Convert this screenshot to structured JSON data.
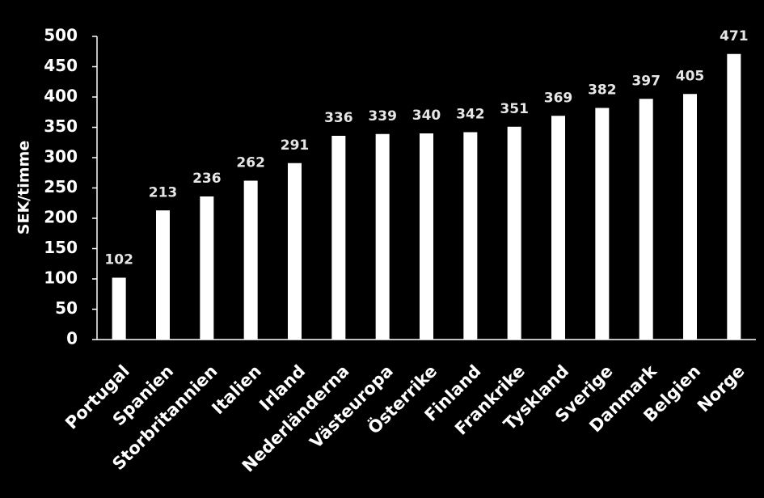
{
  "chart_data": {
    "type": "bar",
    "y_label": "SEK/timme",
    "categories": [
      "Portugal",
      "Spanien",
      "Storbritannien",
      "Italien",
      "Irland",
      "Nederländerna",
      "Västeuropa",
      "Österrike",
      "Finland",
      "Frankrike",
      "Tyskland",
      "Sverige",
      "Danmark",
      "Belgien",
      "Norge"
    ],
    "values": [
      102,
      213,
      236,
      262,
      291,
      336,
      339,
      340,
      342,
      351,
      369,
      382,
      397,
      405,
      471
    ],
    "color": "#ffffff",
    "ylim": [
      0,
      500
    ],
    "yticks": [
      0,
      50,
      100,
      150,
      200,
      250,
      300,
      350,
      400,
      450,
      500
    ]
  }
}
